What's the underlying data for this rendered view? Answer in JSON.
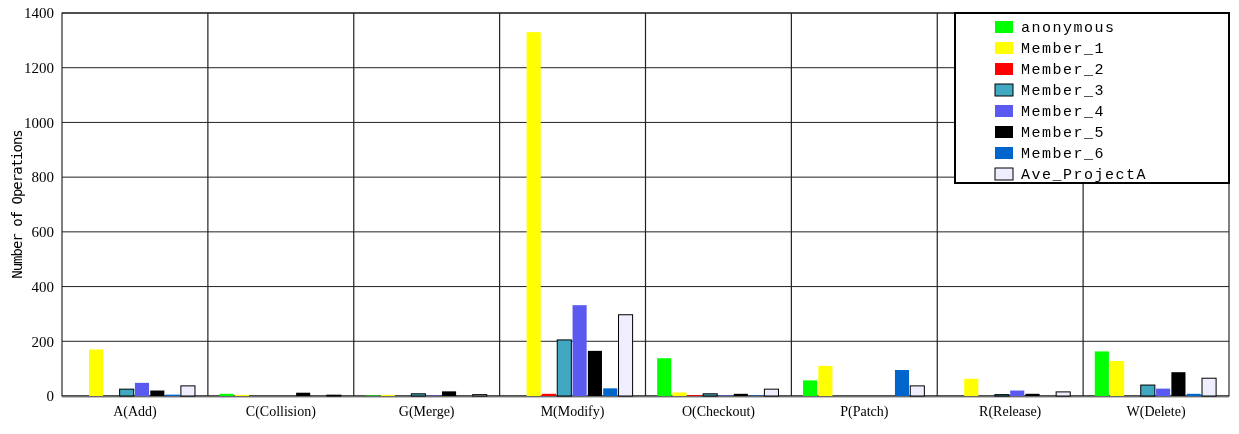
{
  "chart_data": {
    "type": "bar",
    "ylabel": "Number of Operations",
    "categories": [
      "A(Add)",
      "C(Collision)",
      "G(Merge)",
      "M(Modify)",
      "O(Checkout)",
      "P(Patch)",
      "R(Release)",
      "W(Delete)"
    ],
    "series": [
      {
        "name": "anonymous",
        "color": "#00ff00",
        "values": [
          0,
          8,
          2,
          0,
          138,
          57,
          0,
          163
        ]
      },
      {
        "name": "Member_1",
        "color": "#ffff00",
        "values": [
          170,
          4,
          4,
          1330,
          13,
          110,
          63,
          128
        ]
      },
      {
        "name": "Member_2",
        "color": "#ff0000",
        "values": [
          0,
          0,
          0,
          8,
          3,
          0,
          0,
          0
        ]
      },
      {
        "name": "Member_3",
        "color": "#40a8c0",
        "values": [
          25,
          0,
          8,
          205,
          8,
          0,
          5,
          40
        ]
      },
      {
        "name": "Member_4",
        "color": "#5a5af0",
        "values": [
          48,
          0,
          2,
          332,
          2,
          0,
          20,
          27
        ]
      },
      {
        "name": "Member_5",
        "color": "#000000",
        "values": [
          20,
          12,
          17,
          165,
          8,
          0,
          8,
          87
        ]
      },
      {
        "name": "Member_6",
        "color": "#0066cc",
        "values": [
          5,
          0,
          0,
          28,
          2,
          95,
          0,
          8
        ]
      },
      {
        "name": "Ave_ProjectA",
        "color": "#eeeeff",
        "values": [
          37,
          3,
          5,
          297,
          25,
          37,
          15,
          65
        ]
      }
    ],
    "ylim": [
      0,
      1400
    ],
    "yticks": [
      0,
      200,
      400,
      600,
      800,
      1000,
      1200,
      1400
    ],
    "grid": true,
    "legend": "top right"
  }
}
